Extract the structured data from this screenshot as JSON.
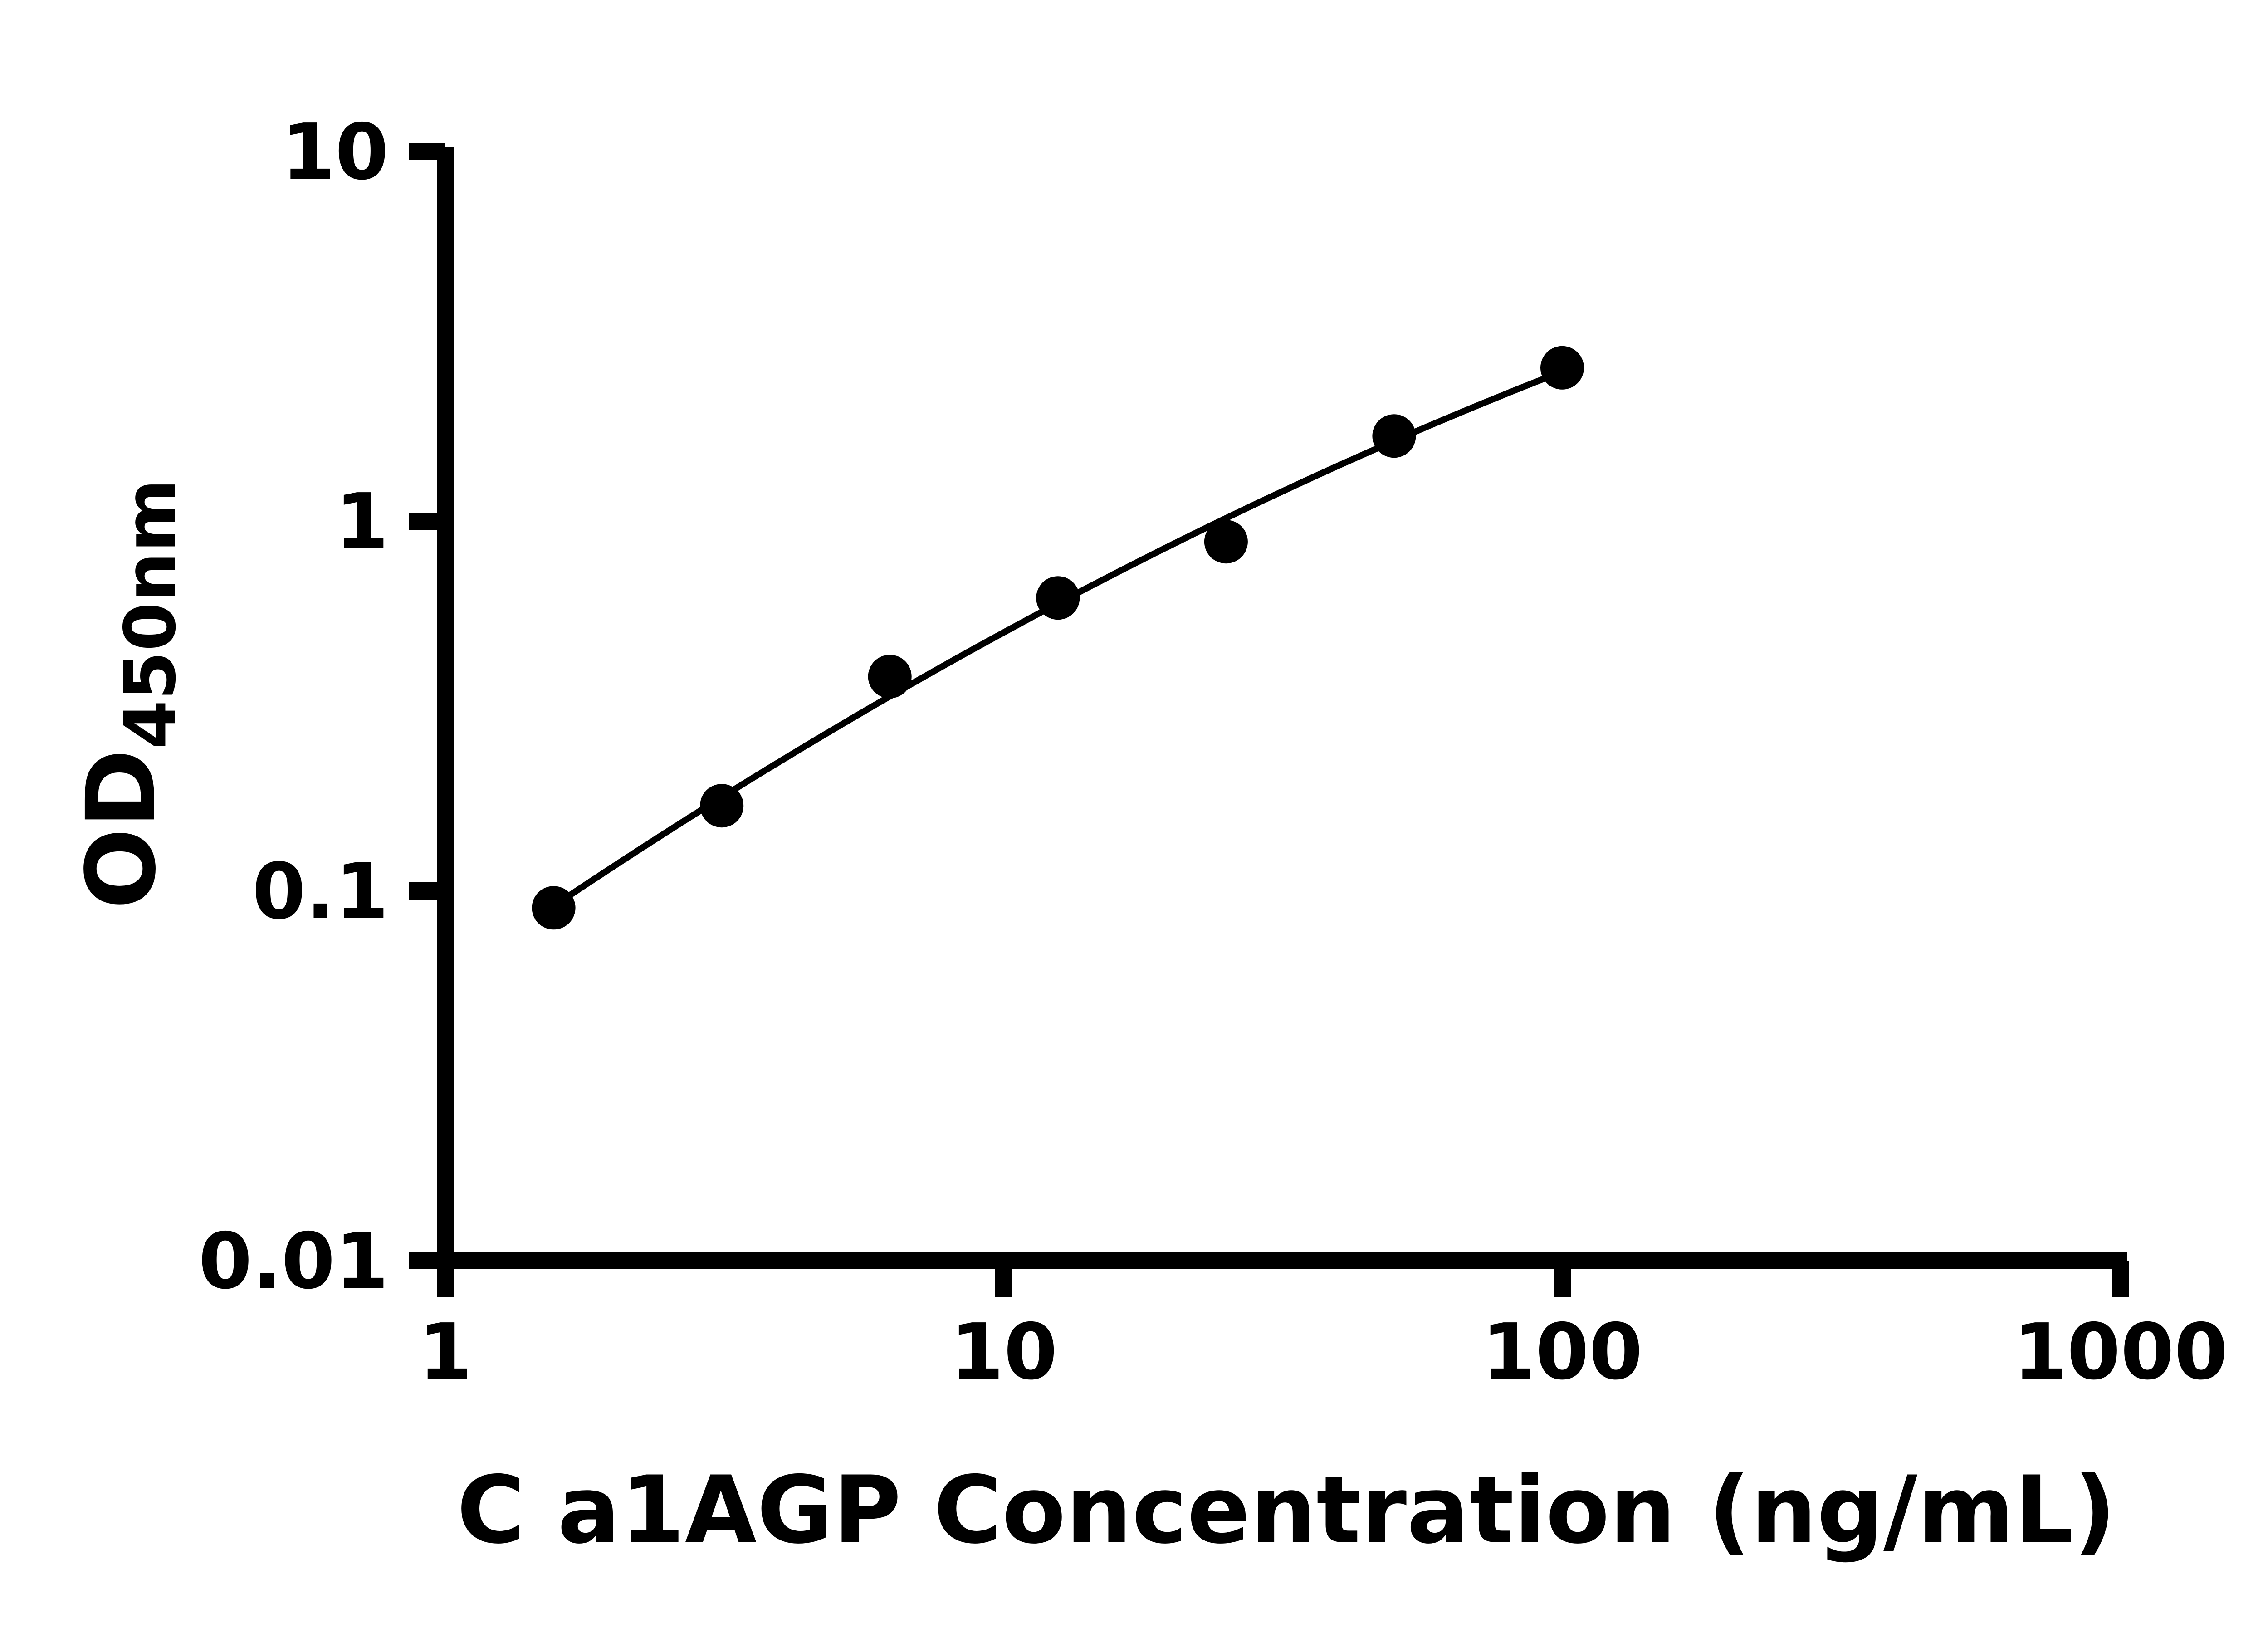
{
  "chart_data": {
    "type": "scatter",
    "title": "",
    "xlabel": "C a1AGP Concentration (ng/mL)",
    "ylabel": "OD",
    "ylabel_subscript": "450nm",
    "x_scale": "log10",
    "y_scale": "log10",
    "xlim": [
      1,
      1000
    ],
    "ylim": [
      0.01,
      10
    ],
    "x_ticks": [
      1,
      10,
      100,
      1000
    ],
    "x_tick_labels": [
      "1",
      "10",
      "100",
      "1000"
    ],
    "y_ticks": [
      10,
      1,
      0.1,
      0.01
    ],
    "y_tick_labels": [
      "10",
      "1",
      "0.1",
      "0.01"
    ],
    "grid": false,
    "legend": "none",
    "x": [
      1.5625,
      3.125,
      6.25,
      12.5,
      25,
      50,
      100
    ],
    "y": [
      0.09,
      0.17,
      0.38,
      0.62,
      0.88,
      1.7,
      2.6
    ],
    "trendline": true,
    "marker": "circle",
    "colors": {
      "foreground": "#000000",
      "background": "#ffffff",
      "marker": "#000000",
      "line": "#000000"
    }
  }
}
